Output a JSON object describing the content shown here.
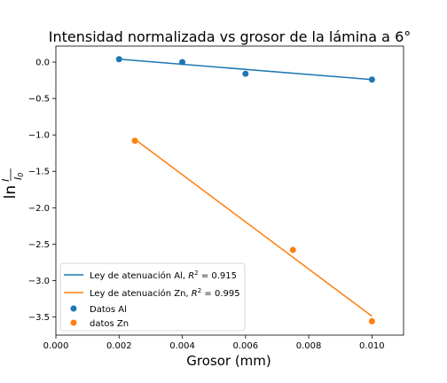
{
  "chart_data": {
    "type": "scatter",
    "title": "Intensidad normalizada vs grosor de la lámina a 6°",
    "xlabel": "Grosor (mm)",
    "ylabel_prefix": "ln",
    "ylabel_numer": "I",
    "ylabel_denom": "I",
    "ylabel_denom_sub": "0",
    "xlim": [
      0.0,
      0.011
    ],
    "ylim": [
      -3.75,
      0.22
    ],
    "x_ticks": [
      0.0,
      0.002,
      0.004,
      0.006,
      0.008,
      0.01
    ],
    "x_tick_labels": [
      "0.000",
      "0.002",
      "0.004",
      "0.006",
      "0.008",
      "0.010"
    ],
    "y_ticks": [
      0.0,
      -0.5,
      -1.0,
      -1.5,
      -2.0,
      -2.5,
      -3.0,
      -3.5
    ],
    "y_tick_labels": [
      "0.0",
      "−0.5",
      "−1.0",
      "−1.5",
      "−2.0",
      "−2.5",
      "−3.0",
      "−3.5"
    ],
    "legend_position": "lower-left",
    "grid": false,
    "series": [
      {
        "name": "Datos Al",
        "kind": "scatter",
        "color": "#1f77b4",
        "x": [
          0.002,
          0.004,
          0.006,
          0.01
        ],
        "y": [
          0.04,
          0.0,
          -0.16,
          -0.24
        ]
      },
      {
        "name": "datos Zn",
        "kind": "scatter",
        "color": "#ff7f0e",
        "x": [
          0.0025,
          0.0075,
          0.01
        ],
        "y": [
          -1.08,
          -2.58,
          -3.56
        ]
      },
      {
        "name_prefix": "Ley de atenuación Al, ",
        "r2_label": "R",
        "r2_value": " = 0.915",
        "kind": "line",
        "color": "#1f77b4",
        "x": [
          0.002,
          0.01
        ],
        "y": [
          0.04,
          -0.24
        ]
      },
      {
        "name_prefix": "Ley de atenuación Zn, ",
        "r2_label": "R",
        "r2_value": " = 0.995",
        "kind": "line",
        "color": "#ff7f0e",
        "x": [
          0.0025,
          0.01
        ],
        "y": [
          -1.06,
          -3.49
        ]
      }
    ]
  }
}
